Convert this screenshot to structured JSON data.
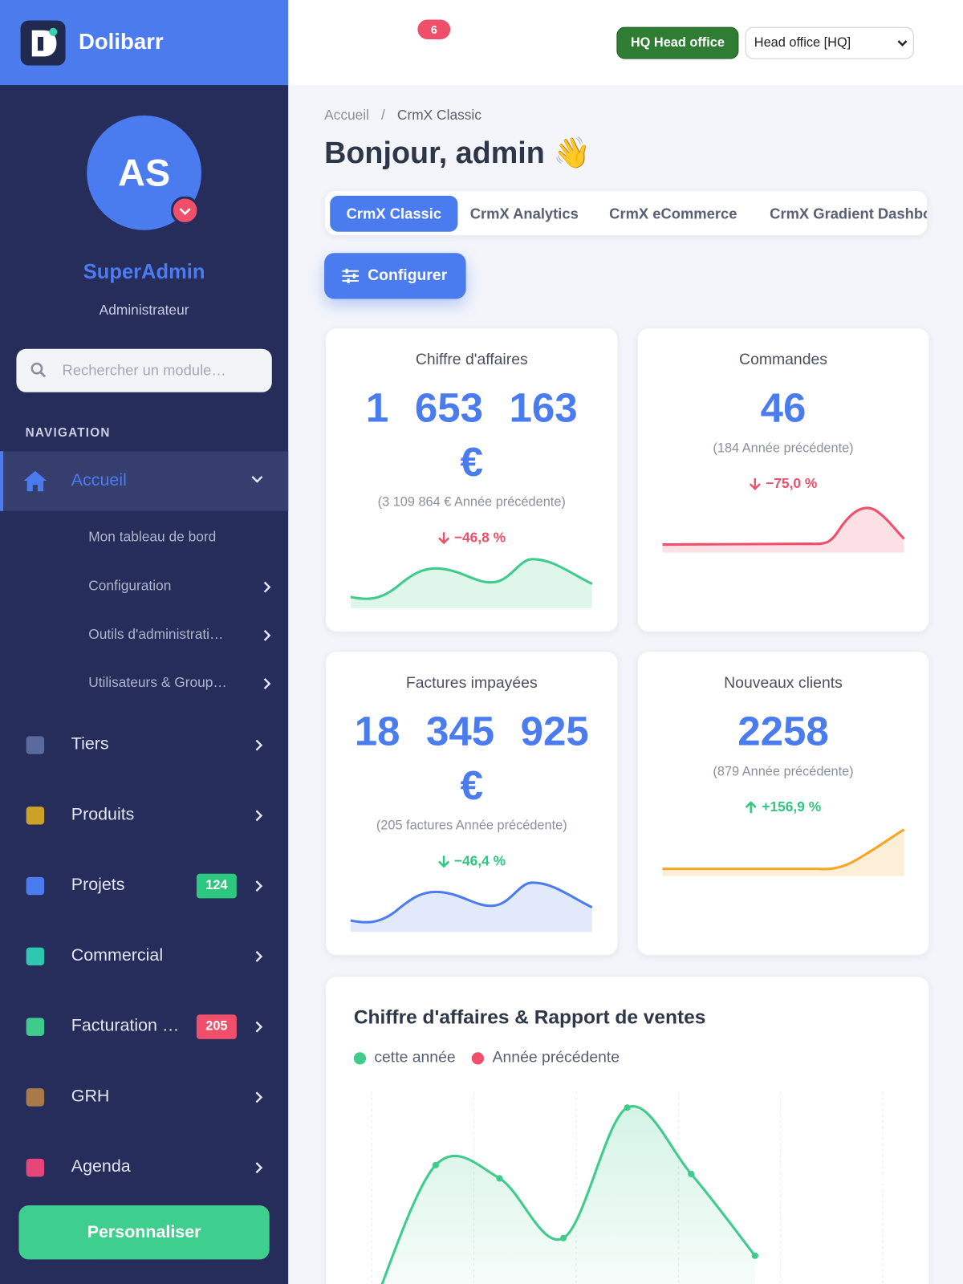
{
  "sidebar": {
    "brand": "Dolibarr",
    "avatar_initials": "AS",
    "user_name": "SuperAdmin",
    "user_role": "Administrateur",
    "search_placeholder": "Rechercher un module…",
    "nav_heading": "NAVIGATION",
    "active_item": "Accueil",
    "submenu": [
      "Mon tableau de bord",
      "Configuration",
      "Outils d'administrati…",
      "Utilisateurs & Group…"
    ],
    "menu": [
      {
        "label": "Tiers"
      },
      {
        "label": "Produits"
      },
      {
        "label": "Projets",
        "badge": 124
      },
      {
        "label": "Commercial"
      },
      {
        "label": "Facturation …",
        "badge": 205
      },
      {
        "label": "GRH"
      },
      {
        "label": "Agenda"
      }
    ],
    "customize_button": "Personnaliser"
  },
  "topbar": {
    "notification_count": 6,
    "entity_badge": "HQ Head office",
    "entity_select": "Head office [HQ]"
  },
  "breadcrumb": [
    "Accueil",
    "CrmX Classic"
  ],
  "greeting": "Bonjour, admin 👋",
  "tabs": [
    "CrmX Classic",
    "CrmX Analytics",
    "CrmX eCommerce",
    "CrmX Gradient Dashboard"
  ],
  "configure_button": "Configurer",
  "kpis": [
    {
      "title": "Chiffre d'affaires",
      "value": "1 653 163 €",
      "previous": "(3 109 864 € Année précédente)",
      "change": "−46,8 %"
    },
    {
      "title": "Commandes",
      "value": "46",
      "previous": "(184 Année précédente)",
      "change": "−75,0 %"
    },
    {
      "title": "Factures impayées",
      "value": "18 345 925 €",
      "previous": "(205 factures Année précédente)",
      "change": "−46,4 %"
    },
    {
      "title": "Nouveaux clients",
      "value": "2258",
      "previous": "(879 Année précédente)",
      "change": "+156,9 %"
    }
  ],
  "sales_chart": {
    "type": "line",
    "title": "Chiffre d'affaires & Rapport de ventes",
    "ylim": [
      0,
      100
    ],
    "series": [
      {
        "name": "cette année",
        "color": "#3ecb8b",
        "values": [
          0,
          66,
          60,
          33,
          92,
          62,
          25
        ]
      },
      {
        "name": "Année précédente",
        "color": "#ef4f6b"
      }
    ]
  }
}
